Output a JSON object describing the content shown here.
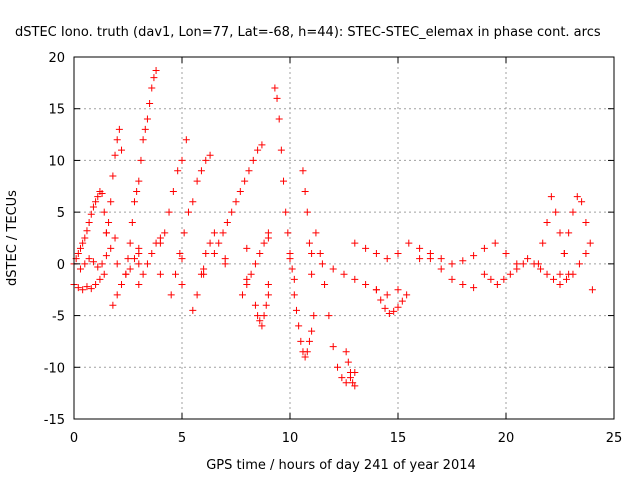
{
  "chart_data": {
    "type": "scatter",
    "title": "dSTEC Iono. truth (dav1, Lon=77, Lat=-68, h=44): STEC-STEC_elemax in phase cont. arcs",
    "xlabel": "GPS time / hours of day 241 of year 2014",
    "ylabel": "dSTEC  / TECUs",
    "xlim": [
      0,
      25
    ],
    "ylim": [
      -15,
      20
    ],
    "xticks": [
      0,
      5,
      10,
      15,
      20,
      25
    ],
    "yticks": [
      -15,
      -10,
      -5,
      0,
      5,
      10,
      15,
      20
    ],
    "grid": true,
    "marker": "+",
    "color": "#ff0000",
    "series": [
      {
        "x": [
          0.0,
          0.1,
          0.2,
          0.3,
          0.4,
          0.5,
          0.6,
          0.7,
          0.8,
          0.9,
          1.0,
          1.1,
          1.2,
          1.3,
          1.4,
          1.5
        ],
        "y": [
          0.0,
          0.5,
          1.0,
          1.5,
          2.0,
          2.5,
          3.2,
          4.0,
          4.8,
          5.5,
          6.0,
          6.5,
          7.0,
          6.8,
          5.0,
          3.0
        ]
      },
      {
        "x": [
          1.5,
          1.6,
          1.7,
          1.8,
          1.9,
          2.0,
          2.1,
          2.2
        ],
        "y": [
          3.0,
          4.0,
          6.0,
          8.5,
          10.5,
          12.0,
          13.0,
          11.0
        ]
      },
      {
        "x": [
          2.4,
          2.5,
          2.6,
          2.7,
          2.8,
          2.9,
          3.0,
          3.1,
          3.2,
          3.3,
          3.4,
          3.5,
          3.6,
          3.7,
          3.8
        ],
        "y": [
          -1.0,
          0.5,
          2.0,
          4.0,
          6.0,
          7.0,
          8.0,
          10.0,
          12.0,
          13.0,
          14.0,
          15.5,
          17.0,
          18.0,
          18.7
        ]
      },
      {
        "x": [
          0.0,
          0.2,
          0.4,
          0.6,
          0.8,
          1.0,
          1.2,
          1.4
        ],
        "y": [
          -2.0,
          -2.3,
          -2.5,
          -2.2,
          -2.4,
          -2.0,
          -1.5,
          -1.0
        ]
      },
      {
        "x": [
          0.3,
          0.5,
          0.7,
          0.9,
          1.1,
          1.3,
          1.5,
          1.7,
          1.9
        ],
        "y": [
          -0.5,
          0.0,
          0.5,
          0.2,
          -0.3,
          0.0,
          0.8,
          1.5,
          2.5
        ]
      },
      {
        "x": [
          1.8,
          2.0,
          2.2,
          2.4,
          2.6,
          2.8,
          3.0
        ],
        "y": [
          -4.0,
          -3.0,
          -2.0,
          -1.0,
          -0.5,
          0.5,
          1.5
        ]
      },
      {
        "x": [
          3.0,
          3.2,
          3.4,
          3.6,
          3.8,
          4.0,
          4.2,
          4.4,
          4.6,
          4.8,
          5.0,
          5.2
        ],
        "y": [
          -2.0,
          -1.0,
          0.0,
          1.0,
          2.0,
          2.5,
          3.0,
          5.0,
          7.0,
          9.0,
          10.0,
          12.0
        ]
      },
      {
        "x": [
          4.5,
          4.7,
          4.9,
          5.1,
          5.3,
          5.5,
          5.7,
          5.9,
          6.1,
          6.3
        ],
        "y": [
          -3.0,
          -1.0,
          1.0,
          3.0,
          5.0,
          6.0,
          8.0,
          9.0,
          10.0,
          10.5
        ]
      },
      {
        "x": [
          5.5,
          5.7,
          5.9,
          6.1,
          6.3,
          6.5
        ],
        "y": [
          -4.5,
          -3.0,
          -1.0,
          1.0,
          2.0,
          3.0
        ]
      },
      {
        "x": [
          6.5,
          6.7,
          6.9,
          7.1,
          7.3,
          7.5,
          7.7,
          7.9,
          8.1,
          8.3,
          8.5,
          8.7
        ],
        "y": [
          1.0,
          2.0,
          3.0,
          4.0,
          5.0,
          6.0,
          7.0,
          8.0,
          9.0,
          10.0,
          11.0,
          11.5
        ]
      },
      {
        "x": [
          7.8,
          8.0,
          8.2,
          8.4,
          8.6,
          8.8,
          9.0
        ],
        "y": [
          -3.0,
          -2.0,
          -1.0,
          0.0,
          1.0,
          2.0,
          3.0
        ]
      },
      {
        "x": [
          8.4,
          8.5,
          8.6,
          8.7,
          8.8,
          8.9,
          9.0
        ],
        "y": [
          -4.0,
          -5.0,
          -5.5,
          -6.0,
          -5.0,
          -4.0,
          -3.0
        ]
      },
      {
        "x": [
          9.3,
          9.4,
          9.5,
          9.6,
          9.7,
          9.8,
          9.9,
          10.0,
          10.1,
          10.2
        ],
        "y": [
          17.0,
          16.0,
          14.0,
          11.0,
          8.0,
          5.0,
          3.0,
          1.0,
          -0.5,
          -1.5
        ]
      },
      {
        "x": [
          10.2,
          10.3,
          10.4,
          10.5,
          10.6,
          10.7,
          10.8,
          10.9,
          11.0,
          11.1
        ],
        "y": [
          -3.0,
          -4.5,
          -6.0,
          -7.5,
          -8.5,
          -9.0,
          -8.5,
          -7.5,
          -6.5,
          -5.0
        ]
      },
      {
        "x": [
          10.6,
          10.7,
          10.8,
          10.9,
          11.0
        ],
        "y": [
          9.0,
          7.0,
          5.0,
          2.0,
          -1.0
        ]
      },
      {
        "x": [
          11.2,
          11.4,
          11.6,
          11.8,
          12.0,
          12.2,
          12.4,
          12.6,
          12.8,
          13.0
        ],
        "y": [
          3.0,
          1.0,
          -2.0,
          -5.0,
          -8.0,
          -10.0,
          -11.0,
          -11.5,
          -11.0,
          -10.5
        ]
      },
      {
        "x": [
          12.6,
          12.7,
          12.8,
          12.9,
          13.0
        ],
        "y": [
          -8.5,
          -9.5,
          -10.5,
          -11.5,
          -11.8
        ]
      },
      {
        "x": [
          11.0,
          11.5,
          12.0,
          12.5,
          13.0,
          13.5,
          14.0,
          14.5,
          15.0
        ],
        "y": [
          1.0,
          0.0,
          -0.5,
          -1.0,
          -1.5,
          -2.0,
          -2.5,
          -3.0,
          -2.5
        ]
      },
      {
        "x": [
          14.0,
          14.2,
          14.4,
          14.6,
          14.8,
          15.0,
          15.2,
          15.4
        ],
        "y": [
          -2.5,
          -3.5,
          -4.3,
          -4.8,
          -4.6,
          -4.2,
          -3.6,
          -3.0
        ]
      },
      {
        "x": [
          13.0,
          13.5,
          14.0,
          14.5,
          15.0,
          15.5,
          16.0,
          16.5,
          17.0,
          17.5,
          18.0,
          18.5
        ],
        "y": [
          2.0,
          1.5,
          1.0,
          0.5,
          1.0,
          2.0,
          1.5,
          0.5,
          -0.5,
          -1.5,
          -2.0,
          -2.3
        ]
      },
      {
        "x": [
          16.0,
          16.5,
          17.0,
          17.5,
          18.0,
          18.5,
          19.0,
          19.5,
          20.0,
          20.5
        ],
        "y": [
          0.5,
          1.0,
          0.5,
          0.0,
          0.3,
          0.8,
          1.5,
          2.0,
          1.0,
          0.0
        ]
      },
      {
        "x": [
          19.0,
          19.3,
          19.6,
          19.9,
          20.2,
          20.5,
          20.8
        ],
        "y": [
          -1.0,
          -1.5,
          -2.0,
          -1.5,
          -1.0,
          -0.5,
          0.0
        ]
      },
      {
        "x": [
          21.5,
          21.7,
          21.9,
          22.1,
          22.3,
          22.5,
          22.7,
          22.9
        ],
        "y": [
          0.0,
          2.0,
          4.0,
          6.5,
          5.0,
          3.0,
          1.0,
          -1.0
        ]
      },
      {
        "x": [
          22.5,
          22.7,
          22.9,
          23.1,
          23.3,
          23.5,
          23.7,
          23.9
        ],
        "y": [
          -1.0,
          1.0,
          3.0,
          5.0,
          6.5,
          6.0,
          4.0,
          2.0
        ]
      },
      {
        "x": [
          21.0,
          21.3,
          21.6,
          21.9,
          22.2,
          22.5,
          22.8,
          23.1,
          23.4,
          23.7,
          24.0
        ],
        "y": [
          0.5,
          0.0,
          -0.5,
          -1.0,
          -1.5,
          -2.0,
          -1.5,
          -1.0,
          0.0,
          1.0,
          -2.5
        ]
      },
      {
        "x": [
          2.0,
          3.0,
          4.0,
          5.0,
          6.0,
          7.0,
          8.0,
          9.0,
          10.0
        ],
        "y": [
          0.0,
          1.0,
          2.0,
          0.5,
          -0.5,
          0.5,
          1.5,
          2.5,
          0.5
        ]
      },
      {
        "x": [
          3.0,
          4.0,
          5.0,
          6.0,
          7.0,
          8.0,
          9.0
        ],
        "y": [
          0.0,
          -1.0,
          -2.0,
          -1.0,
          0.0,
          -1.5,
          -2.0
        ]
      }
    ]
  }
}
